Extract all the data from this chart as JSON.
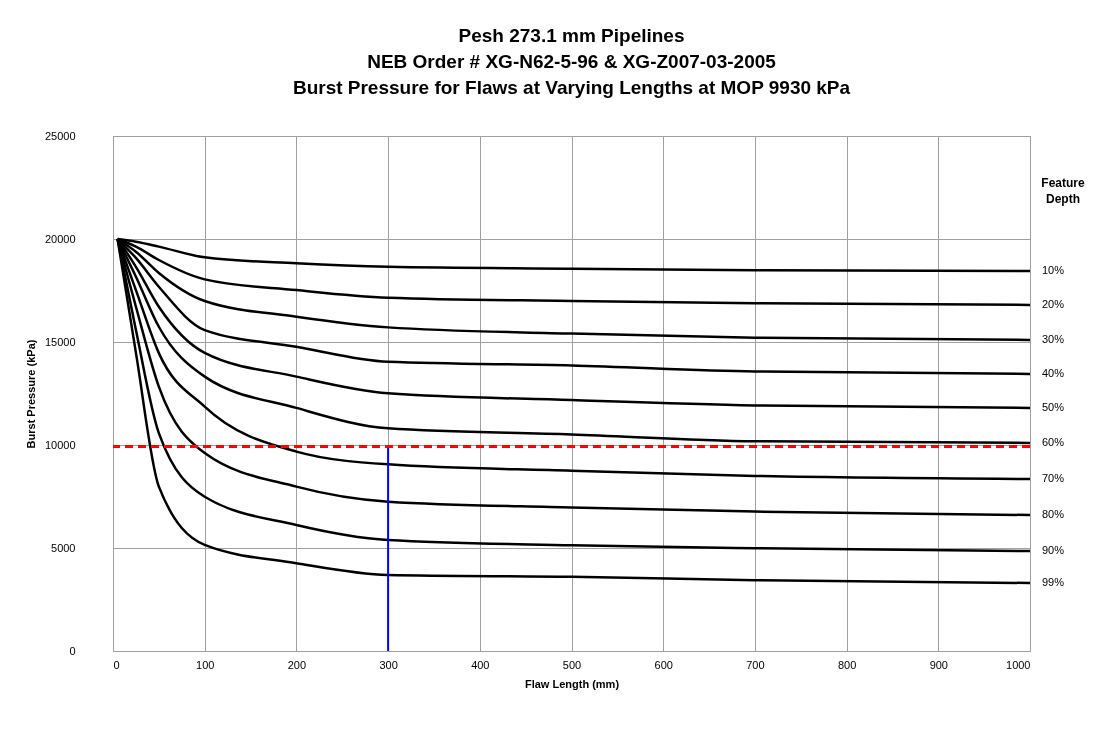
{
  "chart_data": {
    "type": "line",
    "title": "Pesh 273.1 mm Pipelines\nNEB Order # XG-N62-5-96  & XG-Z007-03-2005\nBurst Pressure for Flaws at Varying Lengths at MOP 9930 kPa",
    "xlabel": "Flaw Length (mm)",
    "ylabel": "Burst Pressure (kPa)",
    "legend_title": "Feature Depth",
    "xlim": [
      0,
      1000
    ],
    "xticks": [
      0,
      100,
      200,
      300,
      400,
      500,
      600,
      700,
      800,
      900,
      1000
    ],
    "ylim": [
      0,
      25000
    ],
    "yticks": [
      0,
      5000,
      10000,
      15000,
      20000,
      25000
    ],
    "grid": true,
    "line_style": "solid",
    "marker": "none",
    "x": [
      5,
      25,
      50,
      100,
      200,
      300,
      500,
      700,
      1000
    ],
    "series": [
      {
        "name": "10%",
        "color": "#000000",
        "values": [
          20000,
          19870,
          19630,
          19110,
          18820,
          18650,
          18560,
          18480,
          18450
        ]
      },
      {
        "name": "20%",
        "color": "#000000",
        "values": [
          20000,
          19630,
          18980,
          18040,
          17520,
          17150,
          16990,
          16880,
          16800
        ]
      },
      {
        "name": "30%",
        "color": "#000000",
        "values": [
          20000,
          19380,
          18350,
          16990,
          16230,
          15710,
          15410,
          15210,
          15100
        ]
      },
      {
        "name": "40%",
        "color": "#000000",
        "values": [
          20000,
          19080,
          17680,
          15580,
          14770,
          14040,
          13860,
          13570,
          13450
        ]
      },
      {
        "name": "50%",
        "color": "#000000",
        "values": [
          20000,
          18650,
          16710,
          14470,
          13320,
          12510,
          12180,
          11920,
          11800
        ]
      },
      {
        "name": "60%",
        "color": "#000000",
        "values": [
          20000,
          18170,
          15740,
          13320,
          11800,
          10810,
          10510,
          10180,
          10100
        ]
      },
      {
        "name": "70%",
        "color": "#000000",
        "values": [
          20000,
          17520,
          14460,
          11860,
          9680,
          9060,
          8750,
          8500,
          8350
        ]
      },
      {
        "name": "80%",
        "color": "#000000",
        "values": [
          20000,
          16710,
          12830,
          9610,
          7980,
          7250,
          6970,
          6770,
          6600
        ]
      },
      {
        "name": "90%",
        "color": "#000000",
        "values": [
          20000,
          15580,
          10580,
          7490,
          6120,
          5390,
          5130,
          4990,
          4850
        ]
      },
      {
        "name": "99%",
        "color": "#000000",
        "values": [
          20000,
          14470,
          7980,
          5150,
          4260,
          3690,
          3600,
          3440,
          3300
        ]
      },
      {
        "type": "line",
        "color": "#0000ff",
        "x": [
          300,
          300
        ],
        "values": [
          0,
          9930
        ]
      }
    ],
    "ref_lines": [
      {
        "axis": "y",
        "value": 9930,
        "color": "#ff0000",
        "line_style": "dashed"
      }
    ]
  }
}
